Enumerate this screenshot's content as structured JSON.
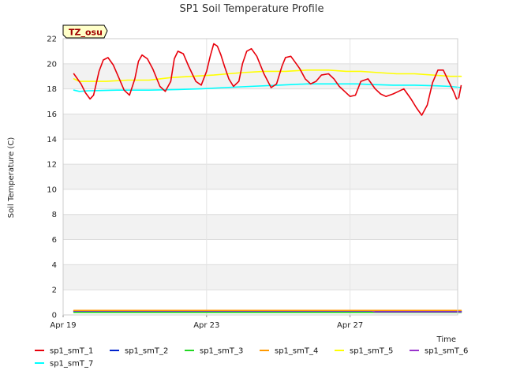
{
  "chart_data": {
    "type": "line",
    "title": "SP1 Soil Temperature Profile",
    "xlabel": "Time",
    "ylabel": "Soil Temperature (C)",
    "badge": "TZ_osu",
    "xlim": [
      0,
      11
    ],
    "ylim": [
      0,
      22
    ],
    "yticks": [
      0,
      2,
      4,
      6,
      8,
      10,
      12,
      14,
      16,
      18,
      20,
      22
    ],
    "xticks": [
      {
        "value": 0,
        "label": "Apr 19"
      },
      {
        "value": 4,
        "label": "Apr 23"
      },
      {
        "value": 8,
        "label": "Apr 27"
      }
    ],
    "series": [
      {
        "name": "sp1_smT_1",
        "color": "#e8000b",
        "x": [
          0.3,
          0.5,
          0.62,
          0.75,
          0.85,
          1.0,
          1.12,
          1.25,
          1.4,
          1.55,
          1.7,
          1.85,
          2.0,
          2.1,
          2.2,
          2.35,
          2.5,
          2.7,
          2.85,
          3.0,
          3.1,
          3.2,
          3.35,
          3.5,
          3.7,
          3.85,
          4.0,
          4.1,
          4.2,
          4.3,
          4.4,
          4.5,
          4.62,
          4.75,
          4.9,
          5.0,
          5.12,
          5.25,
          5.4,
          5.6,
          5.8,
          5.95,
          6.1,
          6.2,
          6.35,
          6.5,
          6.6,
          6.75,
          6.9,
          7.05,
          7.2,
          7.4,
          7.55,
          7.7,
          7.85,
          8.0,
          8.15,
          8.3,
          8.5,
          8.7,
          8.85,
          9.0,
          9.2,
          9.35,
          9.5,
          9.7,
          9.85,
          10.0,
          10.15,
          10.3,
          10.45,
          10.6,
          10.75,
          10.9,
          10.97
        ],
        "values": [
          19.2,
          18.4,
          17.7,
          17.2,
          17.5,
          19.4,
          20.3,
          20.5,
          19.9,
          18.9,
          17.9,
          17.5,
          18.8,
          20.2,
          20.7,
          20.4,
          19.6,
          18.2,
          17.8,
          18.6,
          20.4,
          21.0,
          20.8,
          19.8,
          18.6,
          18.3,
          19.4,
          20.6,
          21.6,
          21.4,
          20.7,
          19.8,
          18.8,
          18.2,
          18.6,
          20.0,
          21.0,
          21.2,
          20.6,
          19.2,
          18.1,
          18.4,
          19.8,
          20.5,
          20.6,
          20.0,
          19.6,
          18.8,
          18.4,
          18.6,
          19.1,
          19.2,
          18.8,
          18.2,
          17.8,
          17.4,
          17.5,
          18.6,
          18.8,
          18.0,
          17.6,
          17.4,
          17.6,
          17.8,
          18.0,
          17.2,
          16.5,
          15.9,
          16.7,
          18.5,
          19.5,
          19.5,
          18.6,
          17.7,
          17.2
        ],
        "tail_x": [
          10.97,
          11.03,
          11.1
        ],
        "tail_values": [
          17.2,
          17.3,
          18.3
        ]
      },
      {
        "name": "sp1_smT_2",
        "color": "#0022cc",
        "x": [
          0.3,
          11.1
        ],
        "values": [
          0.28,
          0.28
        ]
      },
      {
        "name": "sp1_smT_3",
        "color": "#22d822",
        "x": [
          0.3,
          11.1
        ],
        "values": [
          0.2,
          0.2
        ]
      },
      {
        "name": "sp1_smT_4",
        "color": "#ff9900",
        "x": [
          0.3,
          8.8,
          11.1
        ],
        "values": [
          0.36,
          0.36,
          0.36
        ]
      },
      {
        "name": "sp1_smT_5",
        "color": "#ffff00",
        "x": [
          0.3,
          0.45,
          0.6,
          1.2,
          1.8,
          2.4,
          2.7,
          3.0,
          3.6,
          4.2,
          4.6,
          5.0,
          5.6,
          6.2,
          6.8,
          7.4,
          7.9,
          8.3,
          8.8,
          9.3,
          9.8,
          10.3,
          10.8,
          11.1
        ],
        "values": [
          18.8,
          18.6,
          18.6,
          18.6,
          18.7,
          18.7,
          18.8,
          18.9,
          19.0,
          19.1,
          19.2,
          19.3,
          19.4,
          19.4,
          19.5,
          19.5,
          19.4,
          19.4,
          19.3,
          19.2,
          19.2,
          19.1,
          19.0,
          19.0
        ]
      },
      {
        "name": "sp1_smT_6",
        "color": "#9933cc",
        "x": [
          0.3,
          8.6,
          8.7,
          11.1
        ],
        "values": [
          0.32,
          0.32,
          0.24,
          0.24
        ]
      },
      {
        "name": "sp1_smT_7",
        "color": "#00ffff",
        "x": [
          0.3,
          0.45,
          0.7,
          1.5,
          2.4,
          3.2,
          3.8,
          4.5,
          5.2,
          6.0,
          6.8,
          7.6,
          8.2,
          8.6,
          9.2,
          9.8,
          10.4,
          10.8,
          11.1
        ],
        "values": [
          17.9,
          17.8,
          17.85,
          17.9,
          17.9,
          17.95,
          18.0,
          18.1,
          18.2,
          18.3,
          18.4,
          18.4,
          18.4,
          18.35,
          18.3,
          18.3,
          18.25,
          18.2,
          18.1
        ]
      }
    ],
    "legend": [
      "sp1_smT_1",
      "sp1_smT_2",
      "sp1_smT_3",
      "sp1_smT_4",
      "sp1_smT_5",
      "sp1_smT_6",
      "sp1_smT_7"
    ],
    "legend_position": "bottom",
    "grid": true
  }
}
